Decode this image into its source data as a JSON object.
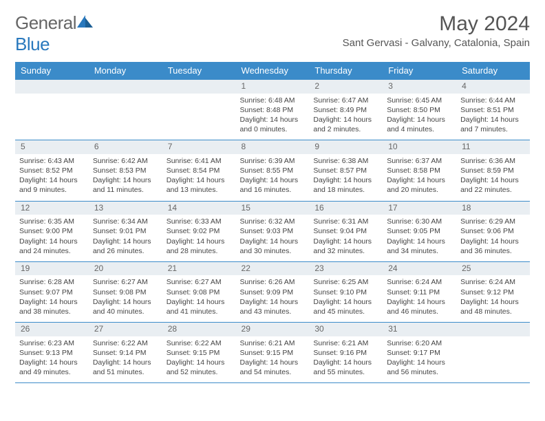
{
  "brand": {
    "part1": "General",
    "part2": "Blue"
  },
  "title": "May 2024",
  "location": "Sant Gervasi - Galvany, Catalonia, Spain",
  "colors": {
    "header_bg": "#3b8bc9",
    "header_text": "#ffffff",
    "row_divider": "#3b8bc9",
    "daynum_bg": "#e9eef2",
    "text": "#444444",
    "brand_blue": "#2878bd"
  },
  "day_headers": [
    "Sunday",
    "Monday",
    "Tuesday",
    "Wednesday",
    "Thursday",
    "Friday",
    "Saturday"
  ],
  "weeks": [
    [
      null,
      null,
      null,
      {
        "n": "1",
        "sr": "6:48 AM",
        "ss": "8:48 PM",
        "dl": "14 hours and 0 minutes."
      },
      {
        "n": "2",
        "sr": "6:47 AM",
        "ss": "8:49 PM",
        "dl": "14 hours and 2 minutes."
      },
      {
        "n": "3",
        "sr": "6:45 AM",
        "ss": "8:50 PM",
        "dl": "14 hours and 4 minutes."
      },
      {
        "n": "4",
        "sr": "6:44 AM",
        "ss": "8:51 PM",
        "dl": "14 hours and 7 minutes."
      }
    ],
    [
      {
        "n": "5",
        "sr": "6:43 AM",
        "ss": "8:52 PM",
        "dl": "14 hours and 9 minutes."
      },
      {
        "n": "6",
        "sr": "6:42 AM",
        "ss": "8:53 PM",
        "dl": "14 hours and 11 minutes."
      },
      {
        "n": "7",
        "sr": "6:41 AM",
        "ss": "8:54 PM",
        "dl": "14 hours and 13 minutes."
      },
      {
        "n": "8",
        "sr": "6:39 AM",
        "ss": "8:55 PM",
        "dl": "14 hours and 16 minutes."
      },
      {
        "n": "9",
        "sr": "6:38 AM",
        "ss": "8:57 PM",
        "dl": "14 hours and 18 minutes."
      },
      {
        "n": "10",
        "sr": "6:37 AM",
        "ss": "8:58 PM",
        "dl": "14 hours and 20 minutes."
      },
      {
        "n": "11",
        "sr": "6:36 AM",
        "ss": "8:59 PM",
        "dl": "14 hours and 22 minutes."
      }
    ],
    [
      {
        "n": "12",
        "sr": "6:35 AM",
        "ss": "9:00 PM",
        "dl": "14 hours and 24 minutes."
      },
      {
        "n": "13",
        "sr": "6:34 AM",
        "ss": "9:01 PM",
        "dl": "14 hours and 26 minutes."
      },
      {
        "n": "14",
        "sr": "6:33 AM",
        "ss": "9:02 PM",
        "dl": "14 hours and 28 minutes."
      },
      {
        "n": "15",
        "sr": "6:32 AM",
        "ss": "9:03 PM",
        "dl": "14 hours and 30 minutes."
      },
      {
        "n": "16",
        "sr": "6:31 AM",
        "ss": "9:04 PM",
        "dl": "14 hours and 32 minutes."
      },
      {
        "n": "17",
        "sr": "6:30 AM",
        "ss": "9:05 PM",
        "dl": "14 hours and 34 minutes."
      },
      {
        "n": "18",
        "sr": "6:29 AM",
        "ss": "9:06 PM",
        "dl": "14 hours and 36 minutes."
      }
    ],
    [
      {
        "n": "19",
        "sr": "6:28 AM",
        "ss": "9:07 PM",
        "dl": "14 hours and 38 minutes."
      },
      {
        "n": "20",
        "sr": "6:27 AM",
        "ss": "9:08 PM",
        "dl": "14 hours and 40 minutes."
      },
      {
        "n": "21",
        "sr": "6:27 AM",
        "ss": "9:08 PM",
        "dl": "14 hours and 41 minutes."
      },
      {
        "n": "22",
        "sr": "6:26 AM",
        "ss": "9:09 PM",
        "dl": "14 hours and 43 minutes."
      },
      {
        "n": "23",
        "sr": "6:25 AM",
        "ss": "9:10 PM",
        "dl": "14 hours and 45 minutes."
      },
      {
        "n": "24",
        "sr": "6:24 AM",
        "ss": "9:11 PM",
        "dl": "14 hours and 46 minutes."
      },
      {
        "n": "25",
        "sr": "6:24 AM",
        "ss": "9:12 PM",
        "dl": "14 hours and 48 minutes."
      }
    ],
    [
      {
        "n": "26",
        "sr": "6:23 AM",
        "ss": "9:13 PM",
        "dl": "14 hours and 49 minutes."
      },
      {
        "n": "27",
        "sr": "6:22 AM",
        "ss": "9:14 PM",
        "dl": "14 hours and 51 minutes."
      },
      {
        "n": "28",
        "sr": "6:22 AM",
        "ss": "9:15 PM",
        "dl": "14 hours and 52 minutes."
      },
      {
        "n": "29",
        "sr": "6:21 AM",
        "ss": "9:15 PM",
        "dl": "14 hours and 54 minutes."
      },
      {
        "n": "30",
        "sr": "6:21 AM",
        "ss": "9:16 PM",
        "dl": "14 hours and 55 minutes."
      },
      {
        "n": "31",
        "sr": "6:20 AM",
        "ss": "9:17 PM",
        "dl": "14 hours and 56 minutes."
      },
      null
    ]
  ],
  "labels": {
    "sunrise": "Sunrise: ",
    "sunset": "Sunset: ",
    "daylight": "Daylight: "
  }
}
